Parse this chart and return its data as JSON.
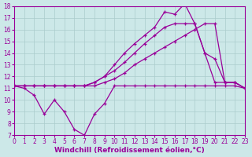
{
  "background_color": "#cce8e8",
  "grid_color": "#aacccc",
  "line_color": "#990099",
  "xlim": [
    0,
    23
  ],
  "ylim": [
    7,
    18
  ],
  "xticks": [
    0,
    1,
    2,
    3,
    4,
    5,
    6,
    7,
    8,
    9,
    10,
    11,
    12,
    13,
    14,
    15,
    16,
    17,
    18,
    19,
    20,
    21,
    22,
    23
  ],
  "yticks": [
    7,
    8,
    9,
    10,
    11,
    12,
    13,
    14,
    15,
    16,
    17,
    18
  ],
  "xlabel": "Windchill (Refroidissement éolien,°C)",
  "series": [
    [
      11.2,
      11.0,
      10.4,
      8.8,
      10.0,
      9.0,
      7.5,
      7.0,
      8.8,
      9.7,
      11.2,
      11.2,
      11.2,
      11.2,
      11.2,
      11.2,
      11.2,
      11.2,
      11.2,
      11.2,
      11.2,
      11.2,
      11.2,
      11.0
    ],
    [
      11.2,
      11.2,
      11.2,
      11.2,
      11.2,
      11.2,
      11.2,
      11.2,
      11.2,
      11.5,
      11.8,
      12.3,
      13.0,
      13.5,
      14.0,
      14.5,
      15.0,
      15.5,
      16.0,
      16.5,
      16.5,
      11.5,
      11.5,
      11.0
    ],
    [
      11.2,
      11.2,
      11.2,
      11.2,
      11.2,
      11.2,
      11.2,
      11.2,
      11.5,
      12.0,
      12.5,
      13.2,
      14.0,
      14.8,
      15.5,
      16.2,
      16.5,
      16.5,
      16.5,
      14.0,
      13.5,
      11.5,
      11.5,
      11.0
    ],
    [
      11.2,
      11.2,
      11.2,
      11.2,
      11.2,
      11.2,
      11.2,
      11.2,
      11.5,
      12.0,
      13.0,
      14.0,
      14.8,
      15.5,
      16.2,
      17.5,
      17.3,
      18.2,
      16.5,
      14.0,
      11.5,
      11.5,
      11.5,
      11.0
    ]
  ],
  "tick_fontsize": 5.5,
  "axis_fontsize": 6.5
}
